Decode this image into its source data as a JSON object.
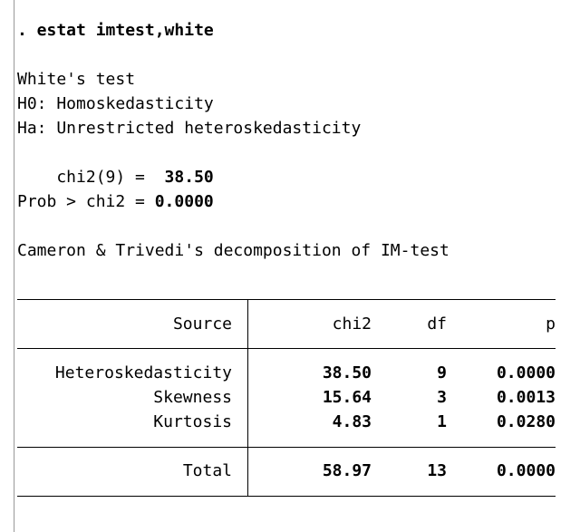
{
  "command": ". estat imtest,white",
  "test": {
    "title": "White's test",
    "h0": "H0: Homoskedasticity",
    "ha": "Ha: Unrestricted heteroskedasticity",
    "chi2_label": "    chi2(9) = ",
    "chi2_value": " 38.50",
    "prob_label": "Prob > chi2 = ",
    "prob_value": "0.0000"
  },
  "decomposition_title": "Cameron & Trivedi's decomposition of IM-test",
  "table": {
    "headers": {
      "source": "Source",
      "chi2": "chi2",
      "df": "df",
      "p": "p"
    },
    "rows": [
      {
        "source": "Heteroskedasticity",
        "chi2": "38.50",
        "df": "9",
        "p": "0.0000"
      },
      {
        "source": "Skewness",
        "chi2": "15.64",
        "df": "3",
        "p": "0.0013"
      },
      {
        "source": "Kurtosis",
        "chi2": "4.83",
        "df": "1",
        "p": "0.0280"
      }
    ],
    "total": {
      "source": "Total",
      "chi2": "58.97",
      "df": "13",
      "p": "0.0000"
    }
  }
}
